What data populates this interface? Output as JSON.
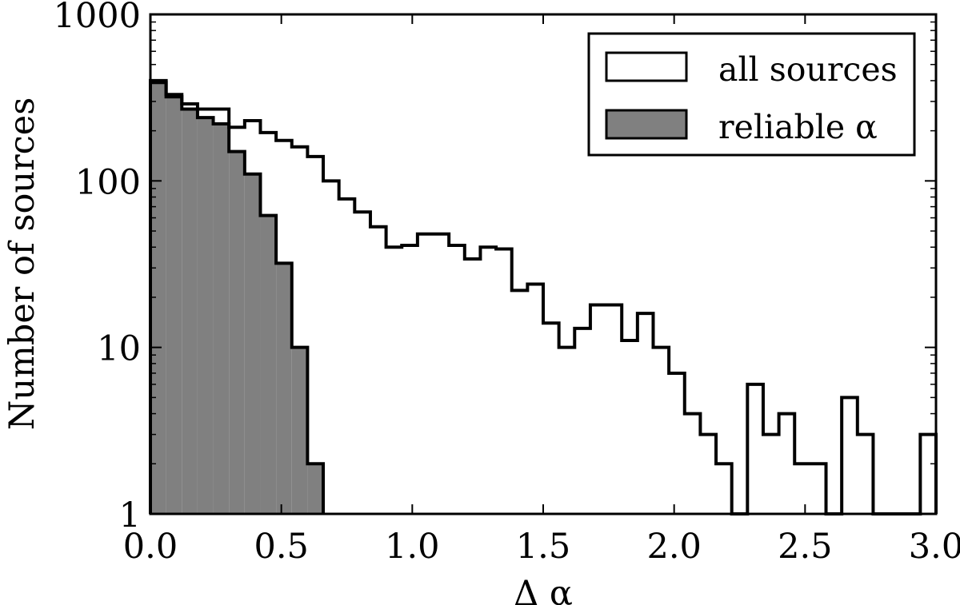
{
  "chart_data": {
    "type": "bar",
    "subtype": "histogram",
    "xlabel": "Δ α",
    "ylabel": "Number of sources",
    "xlim": [
      0.0,
      3.0
    ],
    "ylim": [
      1,
      1000
    ],
    "yscale": "log",
    "grid": false,
    "legend_position": "top-right",
    "x_ticks": [
      "0.0",
      "0.5",
      "1.0",
      "1.5",
      "2.0",
      "2.5",
      "3.0"
    ],
    "y_ticks": [
      "1",
      "10",
      "100",
      "1000"
    ],
    "bin_width": 0.06,
    "bin_starts": [
      0.0,
      0.06,
      0.12,
      0.18,
      0.24,
      0.3,
      0.36,
      0.42,
      0.48,
      0.54,
      0.6,
      0.66,
      0.72,
      0.78,
      0.84,
      0.9,
      0.96,
      1.02,
      1.08,
      1.14,
      1.2,
      1.26,
      1.32,
      1.38,
      1.44,
      1.5,
      1.56,
      1.62,
      1.68,
      1.74,
      1.8,
      1.86,
      1.92,
      1.98,
      2.04,
      2.1,
      2.16,
      2.22,
      2.28,
      2.34,
      2.4,
      2.46,
      2.52,
      2.58,
      2.64,
      2.7,
      2.76,
      2.82,
      2.88,
      2.94
    ],
    "series": [
      {
        "name": "all sources",
        "fill": "#ffffff",
        "values": [
          390,
          330,
          290,
          270,
          270,
          210,
          230,
          195,
          175,
          160,
          140,
          100,
          78,
          65,
          53,
          40,
          41,
          48,
          48,
          41,
          34,
          40,
          39,
          22,
          24,
          14,
          10,
          13,
          18,
          18,
          11,
          16,
          10,
          7,
          4,
          3,
          2,
          0,
          6,
          3,
          4,
          2,
          2,
          0,
          5,
          3,
          0,
          0,
          0,
          3
        ]
      },
      {
        "name": "reliable α",
        "fill": "#808080",
        "values": [
          400,
          320,
          270,
          240,
          220,
          150,
          110,
          62,
          32,
          10,
          2
        ]
      }
    ]
  }
}
